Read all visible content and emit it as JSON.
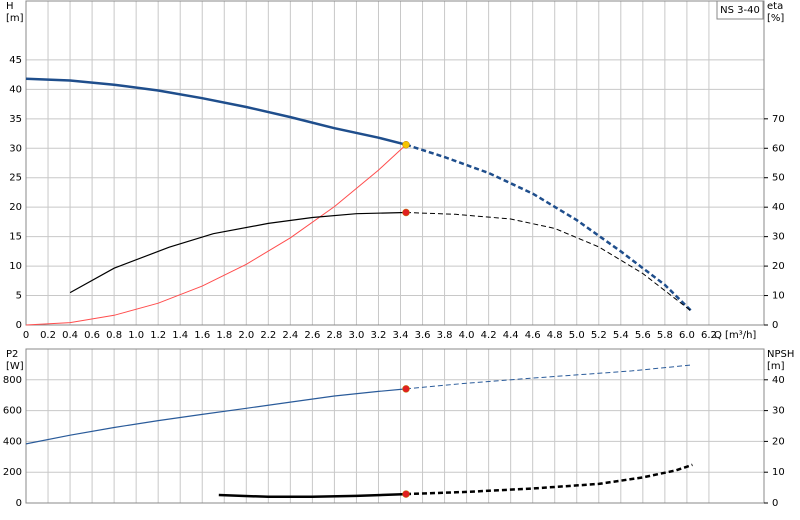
{
  "chart_data": [
    {
      "type": "line",
      "ylabel": "H",
      "yunit": "[m]",
      "y2label": "eta",
      "y2unit": "[%]",
      "xlabel": "Q [m³/h]",
      "tag": "NS 3-40",
      "xlim": [
        0,
        6.7
      ],
      "ylim": [
        0,
        55
      ],
      "y2lim": [
        0,
        110
      ],
      "grid": true,
      "show_xtick_labels": true,
      "xticks": [
        0,
        0.2,
        0.4,
        0.6,
        0.8,
        {
          "value": 1,
          "label": "1.0"
        },
        1.2,
        1.4,
        1.6,
        1.8,
        {
          "value": 2,
          "label": "2.0"
        },
        2.2,
        2.4,
        2.6,
        2.8,
        {
          "value": 3,
          "label": "3.0"
        },
        3.2,
        3.4,
        3.6,
        3.8,
        {
          "value": 4,
          "label": "4.0"
        },
        4.2,
        4.4,
        4.6,
        4.8,
        {
          "value": 5,
          "label": "5.0"
        },
        5.2,
        5.4,
        5.6,
        5.8,
        {
          "value": 6,
          "label": "6.0"
        },
        6.2
      ],
      "yticks": [
        0,
        5,
        10,
        15,
        20,
        25,
        30,
        35,
        40,
        45
      ],
      "y2ticks": [
        0,
        10,
        20,
        30,
        40,
        50,
        60,
        70
      ],
      "series": [
        {
          "color": "#ff4d4d",
          "width": 1,
          "dashed": false,
          "x": [
            0,
            0.4,
            0.8,
            1.2,
            1.6,
            2.0,
            2.4,
            2.8,
            3.2,
            3.45
          ],
          "values": [
            0,
            0.41,
            1.65,
            3.7,
            6.6,
            10.3,
            14.8,
            20.1,
            26.3,
            30.6
          ]
        },
        {
          "color": "#1f4e8c",
          "width": 2.5,
          "dashed": false,
          "x": [
            0,
            0.4,
            0.8,
            1.2,
            1.6,
            2.0,
            2.4,
            2.8,
            3.2,
            3.45
          ],
          "values": [
            41.8,
            41.5,
            40.8,
            39.8,
            38.5,
            37.0,
            35.3,
            33.4,
            31.8,
            30.6
          ]
        },
        {
          "color": "#1f4e8c",
          "width": 2.5,
          "dashed": true,
          "x": [
            3.45,
            3.8,
            4.2,
            4.6,
            5.0,
            5.4,
            5.8,
            6.05
          ],
          "values": [
            30.6,
            28.5,
            25.8,
            22.3,
            17.8,
            12.5,
            6.8,
            2.2
          ]
        },
        {
          "color": "#000000",
          "width": 1.2,
          "dashed": false,
          "axis": "y2",
          "x": [
            0.4,
            0.8,
            1.3,
            1.7,
            2.2,
            2.6,
            3.0,
            3.45
          ],
          "values": [
            11,
            19.3,
            26.4,
            31,
            34.5,
            36.5,
            37.8,
            38.2
          ]
        },
        {
          "color": "#000000",
          "width": 1,
          "dashed": true,
          "axis": "y2",
          "x": [
            3.45,
            3.9,
            4.4,
            4.8,
            5.2,
            5.6,
            6.05
          ],
          "values": [
            38.2,
            37.6,
            36,
            32.8,
            26.5,
            17.5,
            4.4
          ]
        }
      ],
      "markers": [
        {
          "x": 3.45,
          "value": 30.6,
          "color": "#f5c400"
        },
        {
          "x": 3.45,
          "value": 38.2,
          "axis": "y2",
          "color": "#e02020"
        }
      ]
    },
    {
      "type": "line",
      "ylabel": "P2",
      "yunit": "[W]",
      "y2label": "NPSH",
      "y2unit": "[m]",
      "xlim": [
        0,
        6.7
      ],
      "ylim": [
        0,
        1000
      ],
      "y2lim": [
        0,
        50
      ],
      "grid": true,
      "show_xtick_labels": false,
      "xticks": [
        0,
        0.2,
        0.4,
        0.6,
        0.8,
        1,
        1.2,
        1.4,
        1.6,
        1.8,
        2,
        2.2,
        2.4,
        2.6,
        2.8,
        3,
        3.2,
        3.4,
        3.6,
        3.8,
        4,
        4.2,
        4.4,
        4.6,
        4.8,
        5,
        5.2,
        5.4,
        5.6,
        5.8,
        6,
        6.2
      ],
      "yticks": [
        0,
        200,
        400,
        600,
        800
      ],
      "y2ticks": [
        0,
        10,
        20,
        30,
        40
      ],
      "series": [
        {
          "color": "#2a5b9a",
          "width": 1.2,
          "dashed": false,
          "x": [
            0,
            0.4,
            0.8,
            1.2,
            1.6,
            2.0,
            2.4,
            2.8,
            3.2,
            3.45
          ],
          "values": [
            384,
            440,
            490,
            535,
            575,
            615,
            655,
            695,
            725,
            741
          ]
        },
        {
          "color": "#2a5b9a",
          "width": 1,
          "dashed": true,
          "x": [
            3.45,
            4.0,
            4.5,
            5.0,
            5.5,
            6.05
          ],
          "values": [
            741,
            778,
            806,
            832,
            858,
            897
          ]
        },
        {
          "color": "#000000",
          "width": 2.5,
          "dashed": false,
          "axis": "y2",
          "x": [
            1.75,
            2.2,
            2.6,
            3.0,
            3.45
          ],
          "values": [
            2.6,
            2.0,
            2.0,
            2.3,
            2.9
          ]
        },
        {
          "color": "#000000",
          "width": 2.5,
          "dashed": true,
          "axis": "y2",
          "x": [
            3.45,
            4.0,
            4.6,
            5.2,
            5.6,
            5.9,
            6.05
          ],
          "values": [
            2.9,
            3.6,
            4.7,
            6.2,
            8.3,
            10.6,
            12.4
          ]
        }
      ],
      "markers": [
        {
          "x": 3.45,
          "value": 741,
          "color": "#e02020"
        },
        {
          "x": 3.45,
          "value": 2.9,
          "axis": "y2",
          "color": "#e02020"
        }
      ]
    }
  ]
}
